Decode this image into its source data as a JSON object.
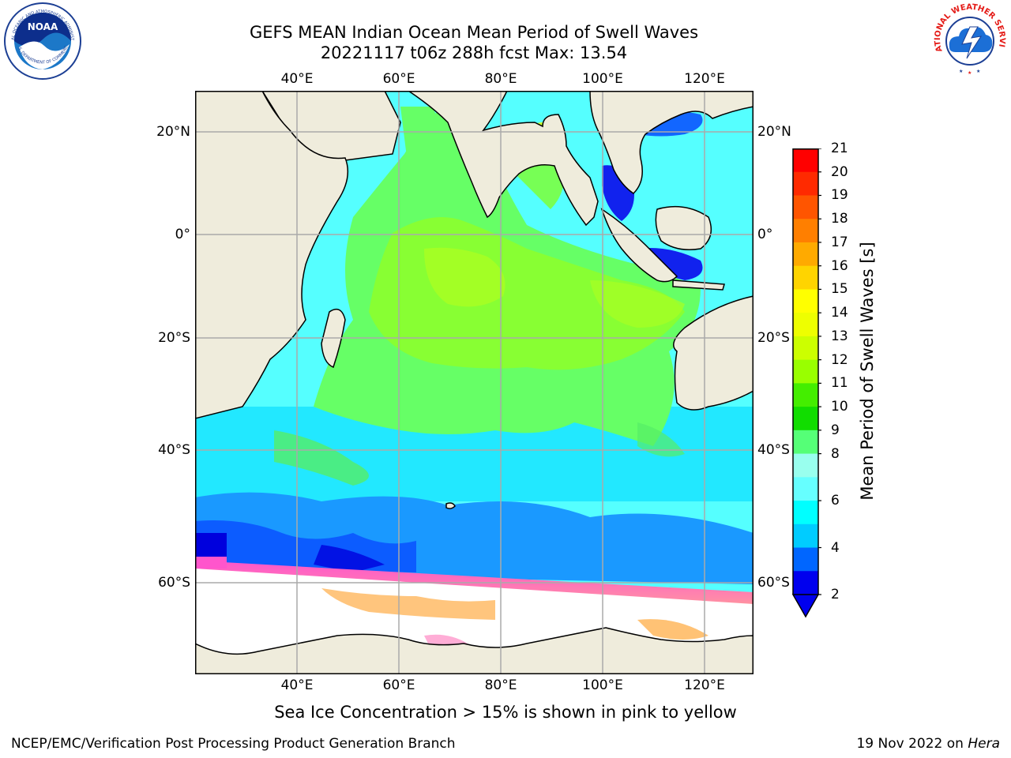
{
  "header": {
    "title_line1": "GEFS MEAN Indian Ocean Mean Period of Swell Waves",
    "title_line2": "20221117 t06z 288h fcst   Max: 13.54"
  },
  "logos": {
    "left": "noaa-logo",
    "left_text": "NOAA",
    "left_ring_top": "NATIONAL OCEANIC AND ATMOSPHERIC ADMINISTRATION",
    "left_ring_bottom": "U.S. DEPARTMENT OF COMMERCE",
    "right": "nws-logo",
    "right_ring": "NATIONAL WEATHER SERVICE"
  },
  "map": {
    "lon_ticks_top": [
      "40°E",
      "60°E",
      "80°E",
      "100°E",
      "120°E"
    ],
    "lon_ticks_bottom": [
      "40°E",
      "60°E",
      "80°E",
      "100°E",
      "120°E"
    ],
    "lat_ticks_left": [
      "20°N",
      "0°",
      "20°S",
      "40°S",
      "60°S"
    ],
    "lat_ticks_right": [
      "20°N",
      "0°",
      "20°S",
      "40°S",
      "60°S"
    ],
    "grid": true
  },
  "colorbar": {
    "label": "Mean Period of Swell Waves [s]",
    "ticks": [
      "21",
      "20",
      "19",
      "18",
      "17",
      "16",
      "15",
      "14",
      "13",
      "12",
      "11",
      "10",
      "9",
      "8",
      "6",
      "4",
      "2"
    ],
    "colors": [
      "#ff0000",
      "#ff2a00",
      "#ff5500",
      "#ff7f00",
      "#ffaa00",
      "#ffd400",
      "#ffff00",
      "#eeff00",
      "#ccff00",
      "#99ff00",
      "#44ee00",
      "#11dd00",
      "#55ff77",
      "#99ffee",
      "#66ffff",
      "#00ffff",
      "#00ccff",
      "#0066ff",
      "#0000ee"
    ],
    "extend": "min"
  },
  "caption": "Sea Ice Concentration > 15% is shown in pink to yellow",
  "footer": {
    "left": "NCEP/EMC/Verification Post Processing Product Generation Branch",
    "right_prefix": "19 Nov 2022 on ",
    "right_italic": "Hera"
  },
  "colors": {
    "land": "#efecdc",
    "ice_free_white": "#ffffff",
    "grid": "#aaaaaa",
    "sea_ice_pink": "#ff55cc",
    "sea_ice_orange": "#ffbb55"
  }
}
